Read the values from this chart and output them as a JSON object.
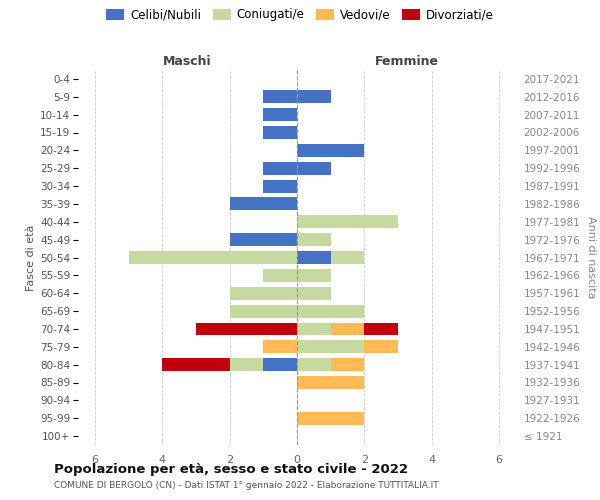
{
  "age_groups": [
    "100+",
    "95-99",
    "90-94",
    "85-89",
    "80-84",
    "75-79",
    "70-74",
    "65-69",
    "60-64",
    "55-59",
    "50-54",
    "45-49",
    "40-44",
    "35-39",
    "30-34",
    "25-29",
    "20-24",
    "15-19",
    "10-14",
    "5-9",
    "0-4"
  ],
  "birth_years": [
    "≤ 1921",
    "1922-1926",
    "1927-1931",
    "1932-1936",
    "1937-1941",
    "1942-1946",
    "1947-1951",
    "1952-1956",
    "1957-1961",
    "1962-1966",
    "1967-1971",
    "1972-1976",
    "1977-1981",
    "1982-1986",
    "1987-1991",
    "1992-1996",
    "1997-2001",
    "2002-2006",
    "2007-2011",
    "2012-2016",
    "2017-2021"
  ],
  "maschi": {
    "celibi": [
      0,
      0,
      0,
      0,
      1,
      0,
      0,
      0,
      0,
      0,
      0,
      2,
      0,
      2,
      1,
      1,
      0,
      1,
      1,
      1,
      0
    ],
    "coniugati": [
      0,
      0,
      0,
      0,
      1,
      0,
      0,
      2,
      2,
      1,
      5,
      0,
      0,
      0,
      0,
      0,
      0,
      0,
      0,
      0,
      0
    ],
    "vedovi": [
      0,
      0,
      0,
      0,
      0,
      1,
      0,
      0,
      0,
      0,
      0,
      0,
      0,
      0,
      0,
      0,
      0,
      0,
      0,
      0,
      0
    ],
    "divorziati": [
      0,
      0,
      0,
      0,
      2,
      0,
      3,
      0,
      0,
      0,
      0,
      0,
      0,
      0,
      0,
      0,
      0,
      0,
      0,
      0,
      0
    ]
  },
  "femmine": {
    "celibi": [
      0,
      0,
      0,
      0,
      0,
      0,
      0,
      0,
      0,
      0,
      1,
      0,
      0,
      0,
      0,
      1,
      2,
      0,
      0,
      1,
      0
    ],
    "coniugati": [
      0,
      0,
      0,
      0,
      1,
      2,
      1,
      2,
      1,
      1,
      1,
      1,
      3,
      0,
      0,
      0,
      0,
      0,
      0,
      0,
      0
    ],
    "vedovi": [
      0,
      2,
      0,
      2,
      1,
      1,
      1,
      0,
      0,
      0,
      0,
      0,
      0,
      0,
      0,
      0,
      0,
      0,
      0,
      0,
      0
    ],
    "divorziati": [
      0,
      0,
      0,
      0,
      0,
      0,
      1,
      0,
      0,
      0,
      0,
      0,
      0,
      0,
      0,
      0,
      0,
      0,
      0,
      0,
      0
    ]
  },
  "colors": {
    "celibi": "#4472C4",
    "coniugati": "#c5d9a0",
    "vedovi": "#FFB955",
    "divorziati": "#C0000C"
  },
  "legend_labels": [
    "Celibi/Nubili",
    "Coniugati/e",
    "Vedovi/e",
    "Divorziati/e"
  ],
  "title": "Popolazione per età, sesso e stato civile - 2022",
  "subtitle": "COMUNE DI BERGOLO (CN) - Dati ISTAT 1° gennaio 2022 - Elaborazione TUTTITALIA.IT",
  "maschi_label": "Maschi",
  "femmine_label": "Femmine",
  "ylabel_left": "Fasce di età",
  "ylabel_right": "Anni di nascita",
  "xlim": 6.5,
  "background_color": "#ffffff",
  "grid_color": "#cccccc"
}
